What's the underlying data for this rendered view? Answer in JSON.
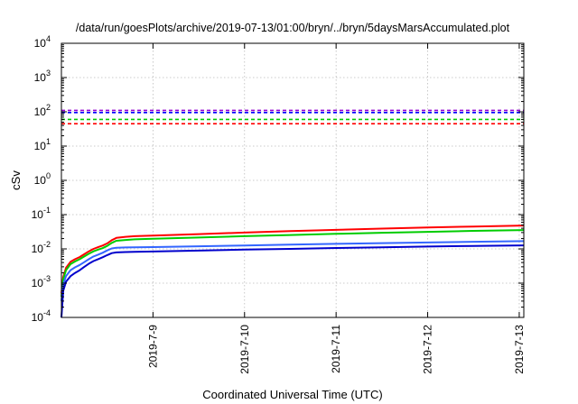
{
  "chart_data": {
    "type": "line",
    "title": "/data/run/goesPlots/archive/2019-07-13/01:00/bryn/../bryn/5daysMarsAccumulated.plot",
    "xlabel": "Coordinated Universal Time (UTC)",
    "ylabel": "cSv",
    "yscale": "log",
    "ylim": [
      0.0001,
      10000
    ],
    "xlim": [
      8.0,
      13.05
    ],
    "grid": true,
    "x_ticks": [
      {
        "value": 9,
        "label": "2019-7-9"
      },
      {
        "value": 10,
        "label": "2019-7-10"
      },
      {
        "value": 11,
        "label": "2019-7-11"
      },
      {
        "value": 12,
        "label": "2019-7-12"
      },
      {
        "value": 13,
        "label": "2019-7-13"
      }
    ],
    "y_ticks": [
      {
        "exp": "-4",
        "value": 0.0001
      },
      {
        "exp": "-3",
        "value": 0.001
      },
      {
        "exp": "-2",
        "value": 0.01
      },
      {
        "exp": "-1",
        "value": 0.1
      },
      {
        "exp": "0",
        "value": 1
      },
      {
        "exp": "1",
        "value": 10
      },
      {
        "exp": "2",
        "value": 100
      },
      {
        "exp": "3",
        "value": 1000
      },
      {
        "exp": "4",
        "value": 10000
      }
    ],
    "y_tick_base": "10",
    "reference_lines": [
      {
        "value": 110,
        "color": "#9400d3"
      },
      {
        "value": 95,
        "color": "#0000ff"
      },
      {
        "value": 60,
        "color": "#00cc00"
      },
      {
        "value": 45,
        "color": "#ff0000"
      }
    ],
    "series": [
      {
        "color": "#ff0000",
        "x": [
          8.0,
          8.02,
          8.05,
          8.1,
          8.15,
          8.2,
          8.25,
          8.3,
          8.35,
          8.4,
          8.45,
          8.5,
          8.55,
          8.6,
          8.7,
          8.8,
          9.0,
          9.5,
          10.0,
          10.5,
          11.0,
          11.5,
          12.0,
          12.5,
          13.05
        ],
        "y": [
          0.0005,
          0.0015,
          0.0028,
          0.0042,
          0.005,
          0.0058,
          0.007,
          0.0085,
          0.01,
          0.0112,
          0.0125,
          0.0145,
          0.018,
          0.021,
          0.0225,
          0.0235,
          0.0245,
          0.027,
          0.03,
          0.033,
          0.036,
          0.039,
          0.042,
          0.045,
          0.048
        ]
      },
      {
        "color": "#00cc00",
        "x": [
          8.0,
          8.02,
          8.05,
          8.1,
          8.15,
          8.2,
          8.25,
          8.3,
          8.35,
          8.4,
          8.45,
          8.5,
          8.55,
          8.6,
          8.7,
          8.8,
          9.0,
          9.5,
          10.0,
          10.5,
          11.0,
          11.5,
          12.0,
          12.5,
          13.05
        ],
        "y": [
          0.0004,
          0.0013,
          0.0024,
          0.0036,
          0.0043,
          0.005,
          0.006,
          0.0072,
          0.0085,
          0.0095,
          0.0105,
          0.0122,
          0.015,
          0.0172,
          0.0182,
          0.019,
          0.0198,
          0.0215,
          0.0235,
          0.0255,
          0.0275,
          0.0295,
          0.0315,
          0.0335,
          0.0355
        ]
      },
      {
        "color": "#3366ff",
        "x": [
          8.0,
          8.02,
          8.05,
          8.1,
          8.15,
          8.2,
          8.25,
          8.3,
          8.35,
          8.4,
          8.45,
          8.5,
          8.55,
          8.6,
          8.7,
          8.8,
          9.0,
          9.5,
          10.0,
          10.5,
          11.0,
          11.5,
          12.0,
          12.5,
          13.05
        ],
        "y": [
          0.0003,
          0.0009,
          0.0016,
          0.0024,
          0.0029,
          0.0034,
          0.0041,
          0.005,
          0.006,
          0.0068,
          0.0077,
          0.009,
          0.0103,
          0.0108,
          0.011,
          0.0111,
          0.0113,
          0.0119,
          0.0126,
          0.0133,
          0.014,
          0.0147,
          0.0154,
          0.0161,
          0.0168
        ]
      },
      {
        "color": "#0000cc",
        "x": [
          8.0,
          8.02,
          8.05,
          8.1,
          8.15,
          8.2,
          8.25,
          8.3,
          8.35,
          8.4,
          8.45,
          8.5,
          8.55,
          8.6,
          8.7,
          8.8,
          9.0,
          9.5,
          10.0,
          10.5,
          11.0,
          11.5,
          12.0,
          12.5,
          13.05
        ],
        "y": [
          0.0001,
          0.0006,
          0.0011,
          0.0016,
          0.002,
          0.0024,
          0.003,
          0.0037,
          0.0044,
          0.005,
          0.0057,
          0.0066,
          0.0075,
          0.0079,
          0.0081,
          0.0082,
          0.0084,
          0.0089,
          0.0095,
          0.01,
          0.0106,
          0.0111,
          0.0117,
          0.0122,
          0.0127
        ]
      }
    ]
  }
}
